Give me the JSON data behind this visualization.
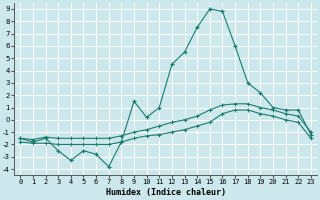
{
  "xlabel": "Humidex (Indice chaleur)",
  "bg_color": "#cce8ec",
  "grid_color": "#ffffff",
  "line_color": "#1a7a6e",
  "xlim": [
    -0.5,
    23.5
  ],
  "ylim": [
    -4.5,
    9.5
  ],
  "xticks": [
    0,
    1,
    2,
    3,
    4,
    5,
    6,
    7,
    8,
    9,
    10,
    11,
    12,
    13,
    14,
    15,
    16,
    17,
    18,
    19,
    20,
    21,
    22,
    23
  ],
  "yticks": [
    -4,
    -3,
    -2,
    -1,
    0,
    1,
    2,
    3,
    4,
    5,
    6,
    7,
    8,
    9
  ],
  "series_main_x": [
    0,
    1,
    2,
    3,
    4,
    5,
    6,
    7,
    8,
    9,
    10,
    11,
    12,
    13,
    14,
    15,
    16,
    17,
    18,
    19,
    20,
    21,
    22,
    23
  ],
  "series_main_y": [
    -1.5,
    -1.8,
    -1.5,
    -2.5,
    -3.3,
    -2.5,
    -2.8,
    -3.8,
    -1.8,
    1.5,
    0.2,
    1.0,
    4.5,
    5.5,
    7.5,
    9.0,
    8.8,
    6.0,
    3.0,
    2.2,
    1.0,
    0.8,
    0.8,
    -1.2
  ],
  "series_upper_x": [
    0,
    1,
    2,
    3,
    4,
    5,
    6,
    7,
    8,
    9,
    10,
    11,
    12,
    13,
    14,
    15,
    16,
    17,
    18,
    19,
    20,
    21,
    22,
    23
  ],
  "series_upper_y": [
    -1.5,
    -1.6,
    -1.4,
    -1.5,
    -1.5,
    -1.5,
    -1.5,
    -1.5,
    -1.3,
    -1.0,
    -0.8,
    -0.5,
    -0.2,
    0.0,
    0.3,
    0.8,
    1.2,
    1.3,
    1.3,
    1.0,
    0.8,
    0.5,
    0.3,
    -1.0
  ],
  "series_lower_x": [
    0,
    1,
    2,
    3,
    4,
    5,
    6,
    7,
    8,
    9,
    10,
    11,
    12,
    13,
    14,
    15,
    16,
    17,
    18,
    19,
    20,
    21,
    22,
    23
  ],
  "series_lower_y": [
    -1.8,
    -1.9,
    -1.9,
    -2.0,
    -2.0,
    -2.0,
    -2.0,
    -2.0,
    -1.8,
    -1.5,
    -1.3,
    -1.2,
    -1.0,
    -0.8,
    -0.5,
    -0.2,
    0.5,
    0.8,
    0.8,
    0.5,
    0.3,
    0.0,
    -0.2,
    -1.5
  ]
}
